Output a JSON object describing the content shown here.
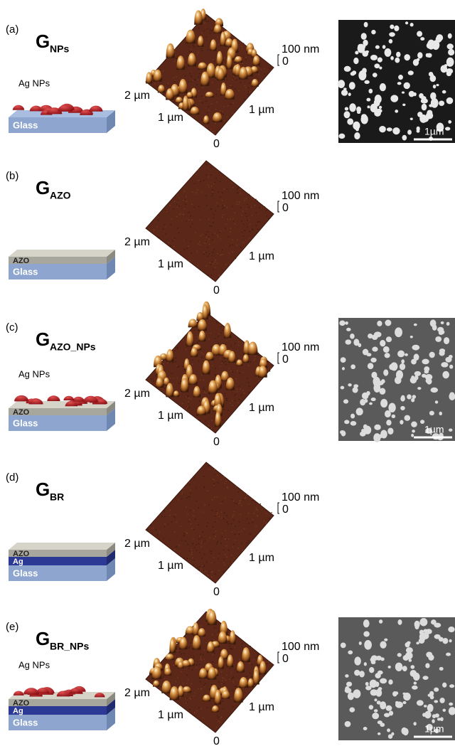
{
  "panels": [
    {
      "label": "(a)",
      "name": "G",
      "subscript": "NPs",
      "np_label": "Ag NPs",
      "layers": [
        "Glass"
      ],
      "afm_labels": {
        "left_end": "2 µm",
        "left_mid": "1 µm",
        "right_mid": "1 µm",
        "origin": "0",
        "z_max": "100 nm",
        "z_min": "0"
      },
      "sem_scale": "1µm"
    },
    {
      "label": "(b)",
      "name": "G",
      "subscript": "AZO",
      "layers": [
        "Glass",
        "AZO"
      ],
      "afm_labels": {
        "left_end": "2 µm",
        "left_mid": "1 µm",
        "right_mid": "1 µm",
        "origin": "0",
        "z_max": "100 nm",
        "z_min": "0"
      }
    },
    {
      "label": "(c)",
      "name": "G",
      "subscript": "AZO_NPs",
      "np_label": "Ag NPs",
      "layers": [
        "Glass",
        "AZO"
      ],
      "afm_labels": {
        "left_end": "2 µm",
        "left_mid": "1 µm",
        "right_mid": "1 µm",
        "origin": "0",
        "z_max": "100 nm",
        "z_min": "0"
      },
      "sem_scale": "1µm"
    },
    {
      "label": "(d)",
      "name": "G",
      "subscript": "BR",
      "layers": [
        "Glass",
        "Ag",
        "AZO"
      ],
      "afm_labels": {
        "left_end": "2 µm",
        "left_mid": "1 µm",
        "right_mid": "1 µm",
        "origin": "0",
        "z_max": "100 nm",
        "z_min": "0"
      }
    },
    {
      "label": "(e)",
      "name": "G",
      "subscript": "BR_NPs",
      "np_label": "Ag NPs",
      "layers": [
        "Glass",
        "Ag",
        "AZO"
      ],
      "afm_labels": {
        "left_end": "2 µm",
        "left_mid": "1 µm",
        "right_mid": "1 µm",
        "origin": "0",
        "z_max": "100 nm",
        "z_min": "0"
      },
      "sem_scale": "1µm"
    }
  ]
}
